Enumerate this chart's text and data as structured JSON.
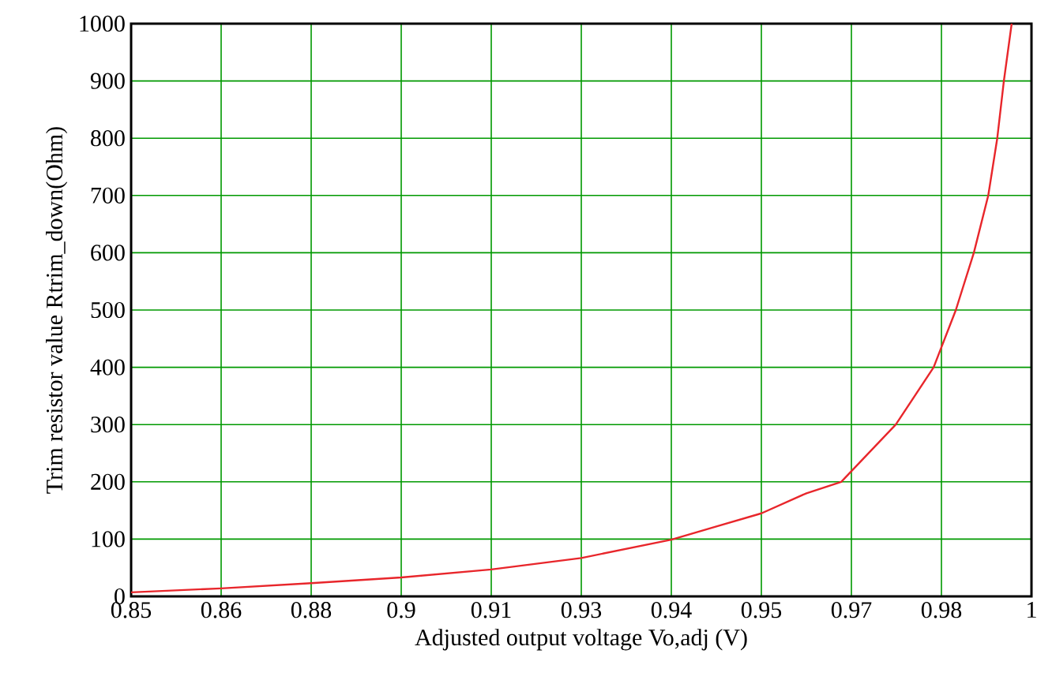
{
  "chart_data": {
    "type": "line",
    "xlabel": "Adjusted output voltage Vo,adj (V)",
    "ylabel": "Trim resistor value Rtrim_down(Ohm)",
    "xlim": [
      0.85,
      1.0
    ],
    "ylim": [
      0,
      1000
    ],
    "xticks": [
      0.85,
      {
        "value": 0.865,
        "label": "0.86"
      },
      0.88,
      {
        "value": 0.895,
        "label": "0.9"
      },
      0.91,
      {
        "value": 0.925,
        "label": "0.93"
      },
      0.94,
      {
        "value": 0.955,
        "label": "0.95"
      },
      0.97,
      {
        "value": 0.985,
        "label": "0.98"
      },
      {
        "value": 1.0,
        "label": "1"
      }
    ],
    "yticks": [
      0,
      100,
      200,
      300,
      400,
      500,
      600,
      700,
      800,
      900,
      1000
    ],
    "grid": true,
    "line_style": "solid",
    "marker": "none",
    "series": [
      {
        "color": "#e8262b",
        "x": [
          0.85,
          0.865,
          0.88,
          0.895,
          0.91,
          0.925,
          0.94,
          0.9475,
          0.955,
          0.9625,
          0.9683,
          0.9774,
          0.9837,
          0.9874,
          0.9904,
          0.9928,
          0.9943,
          0.9954,
          0.9967
        ],
        "values": [
          7,
          14,
          23,
          33,
          47,
          67,
          99,
          122,
          145,
          180,
          200,
          300,
          400,
          500,
          600,
          700,
          800,
          900,
          1000
        ]
      }
    ]
  }
}
